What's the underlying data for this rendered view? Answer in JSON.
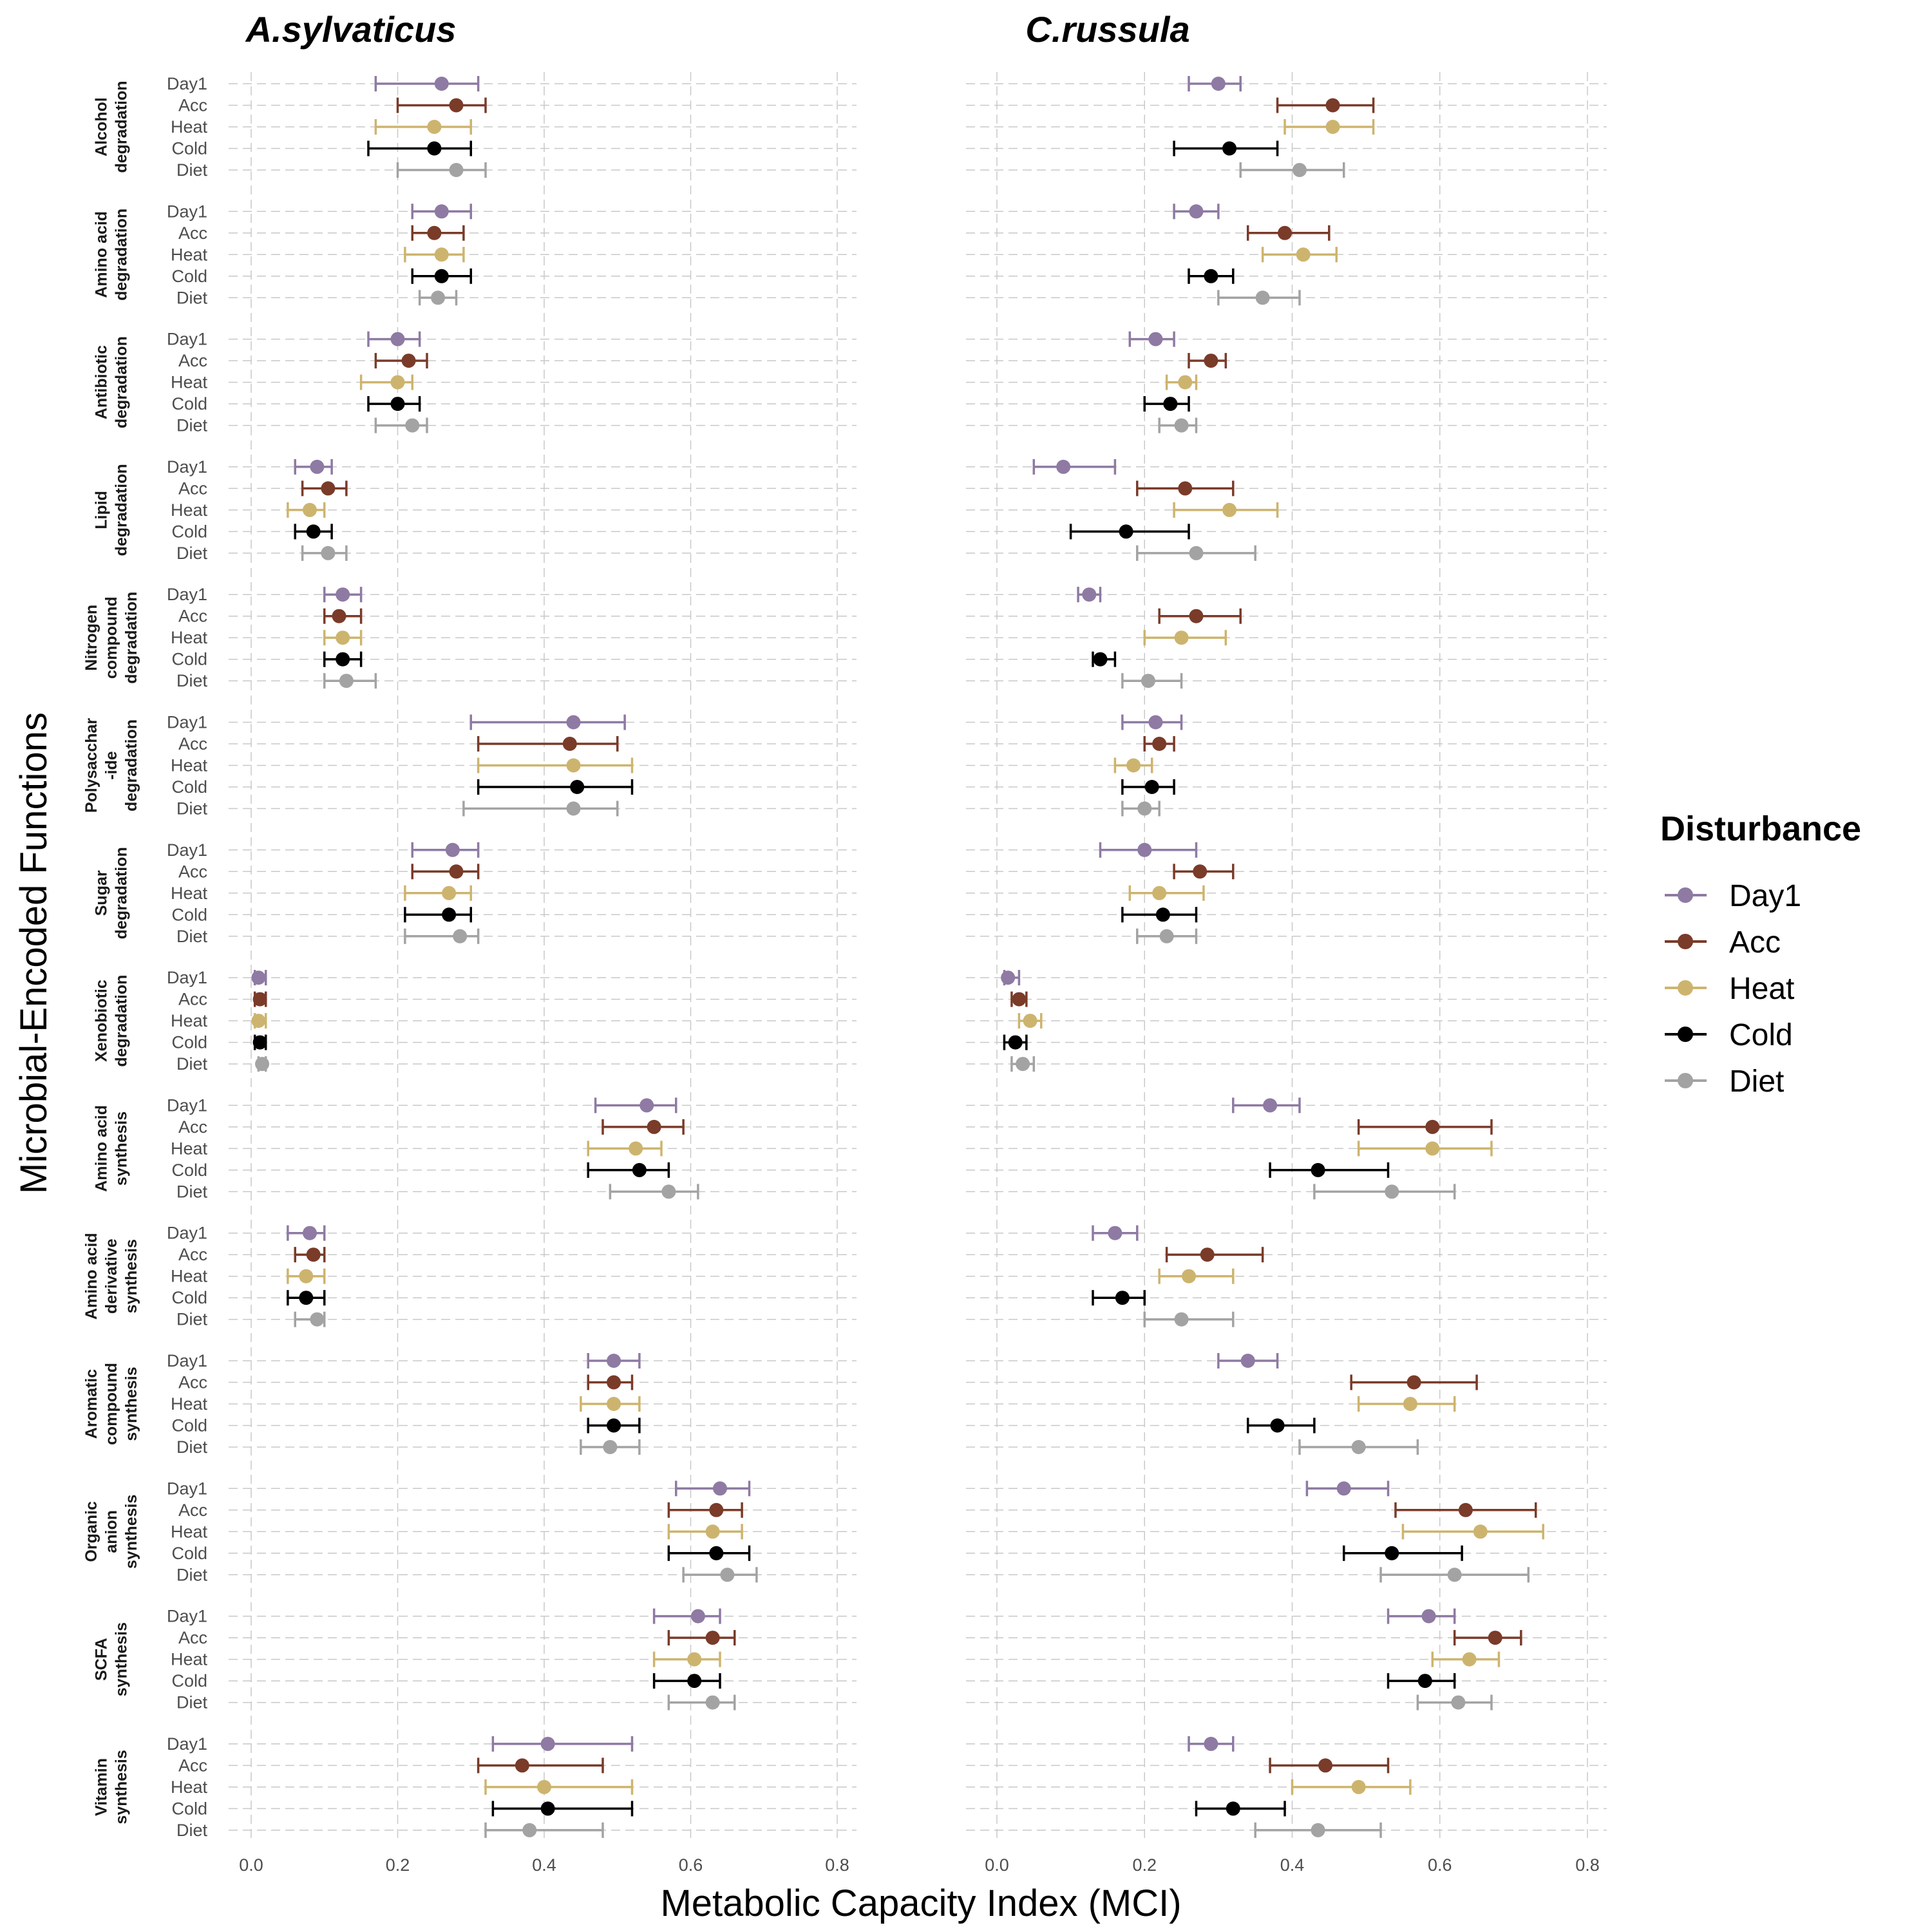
{
  "chart_data": {
    "type": "scatter",
    "subtype": "dot-and-whisker",
    "panels": [
      "A.sylvaticus",
      "C.russula"
    ],
    "functions": [
      "Alcohol degradation",
      "Amino acid degradation",
      "Antibiotic degradation",
      "Lipid degradation",
      "Nitrogen compound degradation",
      "Polysacchar -ide degradation",
      "Sugar degradation",
      "Xenobiotic degradation",
      "Amino acid synthesis",
      "Amino acid derivative synthesis",
      "Aromatic compound synthesis",
      "Organic anion synthesis",
      "SCFA synthesis",
      "Vitamin synthesis"
    ],
    "function_label_lines": [
      [
        "Alcohol",
        "degradation"
      ],
      [
        "Amino acid",
        "degradation"
      ],
      [
        "Antibiotic",
        "degradation"
      ],
      [
        "Lipid",
        "degradation"
      ],
      [
        "Nitrogen",
        "compound",
        "degradation"
      ],
      [
        "Polysacchar",
        "-ide",
        "degradation"
      ],
      [
        "Sugar",
        "degradation"
      ],
      [
        "Xenobiotic",
        "degradation"
      ],
      [
        "Amino acid",
        "synthesis"
      ],
      [
        "Amino acid",
        "derivative",
        "synthesis"
      ],
      [
        "Aromatic",
        "compound",
        "synthesis"
      ],
      [
        "Organic",
        "anion",
        "synthesis"
      ],
      [
        "SCFA",
        "synthesis"
      ],
      [
        "Vitamin",
        "synthesis"
      ]
    ],
    "conditions": [
      "Day1",
      "Acc",
      "Heat",
      "Cold",
      "Diet"
    ],
    "colors": {
      "Day1": "#8e7aa3",
      "Acc": "#7a3b29",
      "Heat": "#cdb46e",
      "Cold": "#000000",
      "Diet": "#a3a3a3"
    },
    "xlabel": "Metabolic Capacity Index (MCI)",
    "ylabel": "Microbial-Encoded Functions",
    "xlim": [
      0,
      0.8
    ],
    "xticks": [
      "0.0",
      "0.2",
      "0.4",
      "0.6",
      "0.8"
    ],
    "legend": {
      "title": "Disturbance",
      "position": "right"
    },
    "grid": true,
    "data": {
      "A.sylvaticus": [
        [
          [
            0.26,
            0.17,
            0.31
          ],
          [
            0.28,
            0.2,
            0.32
          ],
          [
            0.25,
            0.17,
            0.3
          ],
          [
            0.25,
            0.16,
            0.3
          ],
          [
            0.28,
            0.2,
            0.32
          ]
        ],
        [
          [
            0.26,
            0.22,
            0.3
          ],
          [
            0.25,
            0.22,
            0.29
          ],
          [
            0.26,
            0.21,
            0.29
          ],
          [
            0.26,
            0.22,
            0.3
          ],
          [
            0.255,
            0.23,
            0.28
          ]
        ],
        [
          [
            0.2,
            0.16,
            0.23
          ],
          [
            0.215,
            0.17,
            0.24
          ],
          [
            0.2,
            0.15,
            0.22
          ],
          [
            0.2,
            0.16,
            0.23
          ],
          [
            0.22,
            0.17,
            0.24
          ]
        ],
        [
          [
            0.09,
            0.06,
            0.11
          ],
          [
            0.105,
            0.07,
            0.13
          ],
          [
            0.08,
            0.05,
            0.1
          ],
          [
            0.085,
            0.06,
            0.11
          ],
          [
            0.105,
            0.07,
            0.13
          ]
        ],
        [
          [
            0.125,
            0.1,
            0.15
          ],
          [
            0.12,
            0.1,
            0.15
          ],
          [
            0.125,
            0.1,
            0.15
          ],
          [
            0.125,
            0.1,
            0.15
          ],
          [
            0.13,
            0.1,
            0.17
          ]
        ],
        [
          [
            0.44,
            0.3,
            0.51
          ],
          [
            0.435,
            0.31,
            0.5
          ],
          [
            0.44,
            0.31,
            0.52
          ],
          [
            0.445,
            0.31,
            0.52
          ],
          [
            0.44,
            0.29,
            0.5
          ]
        ],
        [
          [
            0.275,
            0.22,
            0.31
          ],
          [
            0.28,
            0.22,
            0.31
          ],
          [
            0.27,
            0.21,
            0.3
          ],
          [
            0.27,
            0.21,
            0.3
          ],
          [
            0.285,
            0.21,
            0.31
          ]
        ],
        [
          [
            0.01,
            0.005,
            0.02
          ],
          [
            0.012,
            0.005,
            0.02
          ],
          [
            0.01,
            0.005,
            0.02
          ],
          [
            0.012,
            0.005,
            0.02
          ],
          [
            0.015,
            0.01,
            0.02
          ]
        ],
        [
          [
            0.54,
            0.47,
            0.58
          ],
          [
            0.55,
            0.48,
            0.59
          ],
          [
            0.525,
            0.46,
            0.56
          ],
          [
            0.53,
            0.46,
            0.57
          ],
          [
            0.57,
            0.49,
            0.61
          ]
        ],
        [
          [
            0.08,
            0.05,
            0.1
          ],
          [
            0.085,
            0.06,
            0.1
          ],
          [
            0.075,
            0.05,
            0.1
          ],
          [
            0.075,
            0.05,
            0.1
          ],
          [
            0.09,
            0.06,
            0.1
          ]
        ],
        [
          [
            0.495,
            0.46,
            0.53
          ],
          [
            0.495,
            0.46,
            0.52
          ],
          [
            0.495,
            0.45,
            0.53
          ],
          [
            0.495,
            0.46,
            0.53
          ],
          [
            0.49,
            0.45,
            0.53
          ]
        ],
        [
          [
            0.64,
            0.58,
            0.68
          ],
          [
            0.635,
            0.57,
            0.67
          ],
          [
            0.63,
            0.57,
            0.67
          ],
          [
            0.635,
            0.57,
            0.68
          ],
          [
            0.65,
            0.59,
            0.69
          ]
        ],
        [
          [
            0.61,
            0.55,
            0.64
          ],
          [
            0.63,
            0.57,
            0.66
          ],
          [
            0.605,
            0.55,
            0.64
          ],
          [
            0.605,
            0.55,
            0.64
          ],
          [
            0.63,
            0.57,
            0.66
          ]
        ],
        [
          [
            0.405,
            0.33,
            0.52
          ],
          [
            0.37,
            0.31,
            0.48
          ],
          [
            0.4,
            0.32,
            0.52
          ],
          [
            0.405,
            0.33,
            0.52
          ],
          [
            0.38,
            0.32,
            0.48
          ]
        ]
      ],
      "C.russula": [
        [
          [
            0.3,
            0.26,
            0.33
          ],
          [
            0.455,
            0.38,
            0.51
          ],
          [
            0.455,
            0.39,
            0.51
          ],
          [
            0.315,
            0.24,
            0.38
          ],
          [
            0.41,
            0.33,
            0.47
          ]
        ],
        [
          [
            0.27,
            0.24,
            0.3
          ],
          [
            0.39,
            0.34,
            0.45
          ],
          [
            0.415,
            0.36,
            0.46
          ],
          [
            0.29,
            0.26,
            0.32
          ],
          [
            0.36,
            0.3,
            0.41
          ]
        ],
        [
          [
            0.215,
            0.18,
            0.24
          ],
          [
            0.29,
            0.26,
            0.31
          ],
          [
            0.255,
            0.23,
            0.27
          ],
          [
            0.235,
            0.2,
            0.26
          ],
          [
            0.25,
            0.22,
            0.27
          ]
        ],
        [
          [
            0.09,
            0.05,
            0.16
          ],
          [
            0.255,
            0.19,
            0.32
          ],
          [
            0.315,
            0.24,
            0.38
          ],
          [
            0.175,
            0.1,
            0.26
          ],
          [
            0.27,
            0.19,
            0.35
          ]
        ],
        [
          [
            0.125,
            0.11,
            0.14
          ],
          [
            0.27,
            0.22,
            0.33
          ],
          [
            0.25,
            0.2,
            0.31
          ],
          [
            0.14,
            0.13,
            0.16
          ],
          [
            0.205,
            0.17,
            0.25
          ]
        ],
        [
          [
            0.215,
            0.17,
            0.25
          ],
          [
            0.22,
            0.2,
            0.24
          ],
          [
            0.185,
            0.16,
            0.21
          ],
          [
            0.21,
            0.17,
            0.24
          ],
          [
            0.2,
            0.17,
            0.22
          ]
        ],
        [
          [
            0.2,
            0.14,
            0.27
          ],
          [
            0.275,
            0.24,
            0.32
          ],
          [
            0.22,
            0.18,
            0.28
          ],
          [
            0.225,
            0.17,
            0.27
          ],
          [
            0.23,
            0.19,
            0.27
          ]
        ],
        [
          [
            0.015,
            0.01,
            0.03
          ],
          [
            0.03,
            0.02,
            0.04
          ],
          [
            0.045,
            0.03,
            0.06
          ],
          [
            0.025,
            0.01,
            0.04
          ],
          [
            0.035,
            0.02,
            0.05
          ]
        ],
        [
          [
            0.37,
            0.32,
            0.41
          ],
          [
            0.59,
            0.49,
            0.67
          ],
          [
            0.59,
            0.49,
            0.67
          ],
          [
            0.435,
            0.37,
            0.53
          ],
          [
            0.535,
            0.43,
            0.62
          ]
        ],
        [
          [
            0.16,
            0.13,
            0.19
          ],
          [
            0.285,
            0.23,
            0.36
          ],
          [
            0.26,
            0.22,
            0.32
          ],
          [
            0.17,
            0.13,
            0.2
          ],
          [
            0.25,
            0.2,
            0.32
          ]
        ],
        [
          [
            0.34,
            0.3,
            0.38
          ],
          [
            0.565,
            0.48,
            0.65
          ],
          [
            0.56,
            0.49,
            0.62
          ],
          [
            0.38,
            0.34,
            0.43
          ],
          [
            0.49,
            0.41,
            0.57
          ]
        ],
        [
          [
            0.47,
            0.42,
            0.53
          ],
          [
            0.635,
            0.54,
            0.73
          ],
          [
            0.655,
            0.55,
            0.74
          ],
          [
            0.535,
            0.47,
            0.63
          ],
          [
            0.62,
            0.52,
            0.72
          ]
        ],
        [
          [
            0.585,
            0.53,
            0.62
          ],
          [
            0.675,
            0.62,
            0.71
          ],
          [
            0.64,
            0.59,
            0.68
          ],
          [
            0.58,
            0.53,
            0.62
          ],
          [
            0.625,
            0.57,
            0.67
          ]
        ],
        [
          [
            0.29,
            0.26,
            0.32
          ],
          [
            0.445,
            0.37,
            0.53
          ],
          [
            0.49,
            0.4,
            0.56
          ],
          [
            0.32,
            0.27,
            0.39
          ],
          [
            0.435,
            0.35,
            0.52
          ]
        ]
      ]
    }
  }
}
